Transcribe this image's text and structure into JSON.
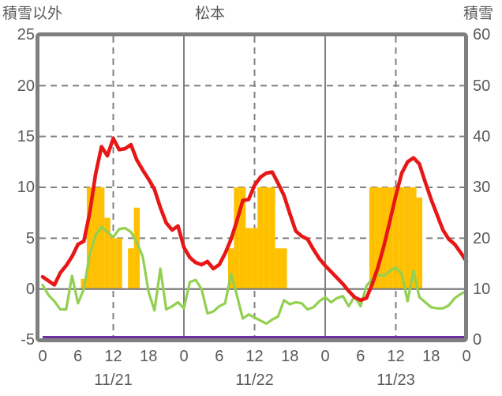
{
  "header": {
    "left_axis_title": "積雪以外",
    "title": "松本",
    "right_axis_title": "積雪"
  },
  "colors": {
    "red_line": "#e81717",
    "green_line": "#92d050",
    "orange_bars": "#ffc000",
    "purple_line": "#7030a0",
    "grid": "#808080",
    "frame": "#7f7f7f",
    "text": "#595959",
    "background": "#ffffff"
  },
  "chart_data": {
    "type": "line",
    "title": "松本",
    "grid_on": true,
    "left_axis": {
      "title": "積雪以外",
      "min": -5,
      "max": 25,
      "tick_labels": [
        "25",
        "20",
        "15",
        "10",
        "5",
        "0",
        "-5"
      ],
      "tick_values": [
        25,
        20,
        15,
        10,
        5,
        0,
        -5
      ]
    },
    "right_axis": {
      "title": "積雪",
      "min": 0,
      "max": 60,
      "tick_labels": [
        "60",
        "50",
        "40",
        "30",
        "20",
        "10",
        "0"
      ],
      "tick_values": [
        60,
        50,
        40,
        30,
        20,
        10,
        0
      ]
    },
    "x_axis": {
      "hours_min": 0,
      "hours_max": 72,
      "tick_hours": [
        0,
        6,
        12,
        18,
        24,
        30,
        36,
        42,
        48,
        54,
        60,
        66,
        72
      ],
      "tick_labels": [
        "0",
        "6",
        "12",
        "18",
        "0",
        "6",
        "12",
        "18",
        "0",
        "6",
        "12",
        "18",
        "0"
      ],
      "date_labels": [
        "11/21",
        "11/22",
        "11/23"
      ],
      "date_center_hours": [
        12,
        36,
        60
      ]
    },
    "gridlines": {
      "horizontal_dashed_left_values": [
        20,
        15,
        10,
        5
      ],
      "horizontal_solid_left_values": [
        0
      ],
      "vertical_dashed_hours": [
        12,
        36,
        60
      ],
      "vertical_solid_hours": [
        24,
        48
      ]
    },
    "series": {
      "red_line": {
        "kind": "line",
        "axis": "left",
        "color": "#e81717",
        "hourly_values": [
          1.2,
          0.8,
          0.4,
          1.6,
          2.3,
          3.2,
          4.4,
          4.7,
          7.5,
          11.3,
          14.0,
          13.1,
          14.8,
          13.7,
          13.8,
          14.2,
          12.7,
          11.7,
          10.8,
          9.8,
          8.0,
          6.5,
          5.8,
          6.2,
          4.1,
          3.1,
          2.6,
          2.4,
          2.7,
          2.0,
          2.4,
          3.5,
          4.9,
          6.7,
          8.7,
          8.8,
          10.2,
          11.0,
          11.4,
          11.5,
          10.4,
          9.2,
          7.4,
          5.7,
          5.2,
          4.9,
          3.9,
          3.0,
          2.3,
          1.7,
          1.1,
          0.5,
          -0.2,
          -0.8,
          -1.1,
          -0.9,
          0.5,
          2.2,
          4.3,
          6.7,
          9.2,
          11.4,
          12.5,
          12.9,
          12.3,
          10.5,
          8.8,
          7.3,
          5.8,
          4.9,
          4.4,
          3.6,
          2.7
        ]
      },
      "green_line": {
        "kind": "line",
        "axis": "left",
        "color": "#92d050",
        "hourly_values": [
          0.4,
          -0.6,
          -1.2,
          -2.0,
          -2.0,
          1.3,
          -1.4,
          0.0,
          3.4,
          5.3,
          6.1,
          5.6,
          5.1,
          5.9,
          6.0,
          5.6,
          4.6,
          3.2,
          -0.3,
          -2.1,
          2.0,
          -2.0,
          -1.7,
          -1.3,
          -1.9,
          0.7,
          0.9,
          0.0,
          -2.4,
          -2.2,
          -1.7,
          -1.4,
          1.5,
          -0.6,
          -2.9,
          -2.5,
          -2.8,
          -3.1,
          -3.4,
          -3.0,
          -2.7,
          -1.1,
          -1.5,
          -1.3,
          -1.4,
          -2.0,
          -1.8,
          -1.2,
          -0.8,
          -1.3,
          -0.9,
          -0.7,
          -1.7,
          -0.7,
          -1.7,
          0.3,
          1.0,
          1.4,
          1.3,
          1.8,
          2.1,
          1.5,
          -1.2,
          1.8,
          -0.8,
          -1.3,
          -1.8,
          -1.9,
          -1.9,
          -1.6,
          -0.9,
          -0.5,
          -0.2
        ]
      },
      "orange_bars": {
        "kind": "bar",
        "axis": "left",
        "color": "#ffc000",
        "hourly_values": [
          0,
          0,
          0,
          0,
          0,
          0,
          0,
          1,
          10,
          10,
          10,
          7,
          5,
          5,
          0,
          4,
          8,
          0,
          0,
          0,
          0,
          0,
          0,
          0,
          0,
          0,
          0,
          0,
          0,
          0,
          0,
          0,
          4,
          10,
          10,
          6,
          6,
          10,
          10,
          10,
          4,
          4,
          0,
          0,
          0,
          0,
          0,
          0,
          0,
          0,
          0,
          0,
          0,
          0,
          0,
          0,
          10,
          10,
          10,
          10,
          10,
          10,
          10,
          10,
          9,
          0,
          0,
          0,
          0,
          0,
          0,
          0,
          0
        ]
      },
      "purple_line": {
        "kind": "line",
        "axis": "right",
        "color": "#7030a0",
        "constant_value": 0
      }
    }
  }
}
